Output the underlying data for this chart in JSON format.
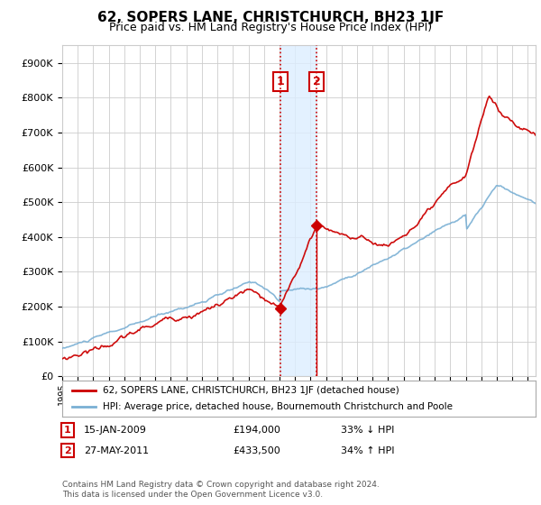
{
  "title": "62, SOPERS LANE, CHRISTCHURCH, BH23 1JF",
  "subtitle": "Price paid vs. HM Land Registry's House Price Index (HPI)",
  "legend_line1": "62, SOPERS LANE, CHRISTCHURCH, BH23 1JF (detached house)",
  "legend_line2": "HPI: Average price, detached house, Bournemouth Christchurch and Poole",
  "transaction1_date": "15-JAN-2009",
  "transaction1_price": 194000,
  "transaction1_hpi": "33% ↓ HPI",
  "transaction1_year": 2009.04,
  "transaction2_date": "27-MAY-2011",
  "transaction2_price": 433500,
  "transaction2_hpi": "34% ↑ HPI",
  "transaction2_year": 2011.4,
  "footnote": "Contains HM Land Registry data © Crown copyright and database right 2024.\nThis data is licensed under the Open Government Licence v3.0.",
  "red_color": "#cc0000",
  "blue_color": "#7ab0d4",
  "shade_color": "#ddeeff",
  "grid_color": "#cccccc",
  "background_color": "#ffffff",
  "ylim_max": 950000,
  "xlim_start": 1995,
  "xlim_end": 2025.5
}
